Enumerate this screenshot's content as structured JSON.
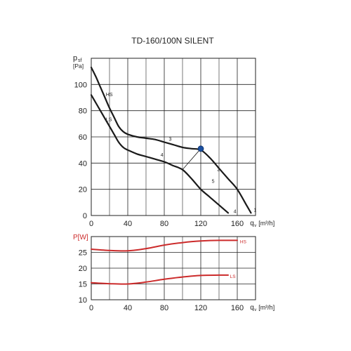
{
  "chart_data": [
    {
      "type": "line",
      "title": "TD-160/100N SILENT",
      "ylabel_main": "p",
      "ylabel_sub": "sf",
      "yunit": "[Pa]",
      "xlabel_main": "q",
      "xlabel_sub": "v",
      "xunit": "[m³/h]",
      "xlim": [
        0,
        180
      ],
      "ylim": [
        0,
        120
      ],
      "x_ticks": [
        0,
        40,
        80,
        120,
        160
      ],
      "y_ticks": [
        0,
        20,
        40,
        60,
        80,
        100
      ],
      "grid": true,
      "series": [
        {
          "name": "HS",
          "points": [
            [
              0,
              113
            ],
            [
              5,
              106
            ],
            [
              10,
              98
            ],
            [
              15,
              90
            ],
            [
              20,
              82
            ],
            [
              25,
              75
            ],
            [
              30,
              68
            ],
            [
              35,
              64
            ],
            [
              40,
              62
            ],
            [
              50,
              60
            ],
            [
              60,
              59
            ],
            [
              70,
              58
            ],
            [
              80,
              56
            ],
            [
              90,
              54
            ],
            [
              100,
              52
            ],
            [
              110,
              51
            ],
            [
              120,
              50
            ],
            [
              130,
              44
            ],
            [
              140,
              36
            ],
            [
              150,
              28
            ],
            [
              160,
              20
            ],
            [
              170,
              8
            ],
            [
              175,
              2
            ]
          ]
        },
        {
          "name": "LS",
          "points": [
            [
              0,
              92
            ],
            [
              5,
              86
            ],
            [
              10,
              80
            ],
            [
              15,
              74
            ],
            [
              20,
              68
            ],
            [
              25,
              62
            ],
            [
              30,
              56
            ],
            [
              35,
              52
            ],
            [
              40,
              50
            ],
            [
              50,
              47
            ],
            [
              60,
              45
            ],
            [
              70,
              43
            ],
            [
              80,
              41
            ],
            [
              90,
              38
            ],
            [
              100,
              35
            ],
            [
              110,
              28
            ],
            [
              120,
              20
            ],
            [
              130,
              14
            ],
            [
              140,
              8
            ],
            [
              150,
              2
            ]
          ]
        },
        {
          "name": "",
          "points": [
            [
              100,
              35
            ],
            [
              120,
              51
            ]
          ]
        }
      ],
      "marker": {
        "x": 120,
        "y": 51,
        "color": "#1a4fa0"
      },
      "curve_labels": [
        {
          "text": "HS",
          "x": 16,
          "y": 91
        },
        {
          "text": "LS",
          "x": 16,
          "y": 72
        },
        {
          "text": "3",
          "x": 85,
          "y": 57
        },
        {
          "text": "4",
          "x": 76,
          "y": 45
        },
        {
          "text": "2",
          "x": 138,
          "y": 34
        },
        {
          "text": "5",
          "x": 132,
          "y": 25
        },
        {
          "text": "1",
          "x": 178,
          "y": 3
        },
        {
          "text": "4",
          "x": 156,
          "y": 2
        }
      ],
      "line_color": "#1a1a1a"
    },
    {
      "type": "line",
      "ylabel": "P[W]",
      "xlabel_main": "q",
      "xlabel_sub": "v",
      "xunit": "[m³/h]",
      "xlim": [
        0,
        180
      ],
      "ylim": [
        10,
        30
      ],
      "x_ticks": [
        0,
        40,
        80,
        120,
        160
      ],
      "y_ticks": [
        10,
        15,
        20,
        25
      ],
      "grid": true,
      "series": [
        {
          "name": "HS",
          "points": [
            [
              0,
              26
            ],
            [
              20,
              25.6
            ],
            [
              40,
              25.5
            ],
            [
              60,
              26.2
            ],
            [
              80,
              27.3
            ],
            [
              100,
              28.1
            ],
            [
              120,
              28.6
            ],
            [
              140,
              28.8
            ],
            [
              160,
              28.8
            ]
          ]
        },
        {
          "name": "LS",
          "points": [
            [
              0,
              15.4
            ],
            [
              20,
              15.1
            ],
            [
              40,
              15.0
            ],
            [
              60,
              15.6
            ],
            [
              80,
              16.5
            ],
            [
              100,
              17.2
            ],
            [
              120,
              17.7
            ],
            [
              140,
              17.8
            ],
            [
              150,
              17.8
            ]
          ]
        }
      ],
      "series_labels": [
        {
          "text": "HS",
          "x": 163,
          "y": 28.6
        },
        {
          "text": "LS",
          "x": 152,
          "y": 17.6
        }
      ],
      "line_color": "#cc2b2b"
    }
  ],
  "colors": {
    "ylabel_power": "#cc2b2b",
    "grid": "#222222",
    "text": "#222222"
  }
}
